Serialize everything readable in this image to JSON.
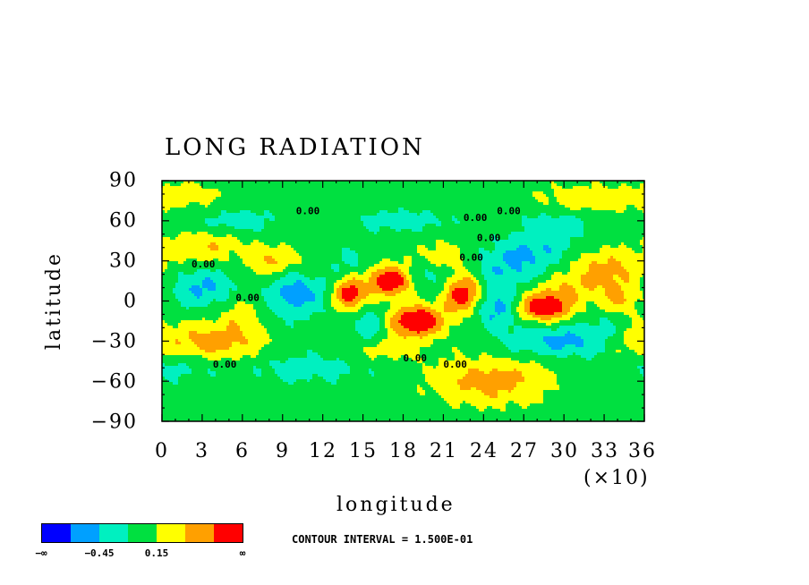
{
  "chart_data": {
    "type": "heatmap",
    "title": "LONG RADIATION",
    "xlabel": "longitude",
    "ylabel": "latitude",
    "x_multiplier": "(×10)",
    "xlim": [
      0,
      36
    ],
    "ylim": [
      -90,
      90
    ],
    "x_ticks": [
      "0",
      "3",
      "6",
      "9",
      "12",
      "15",
      "18",
      "21",
      "24",
      "27",
      "30",
      "33",
      "36"
    ],
    "y_ticks": [
      "90",
      "60",
      "30",
      "0",
      "−30",
      "−60",
      "−90"
    ],
    "contour_interval": "CONTOUR INTERVAL = 1.500E-01",
    "contour_labels": [
      "0.00",
      "0.00",
      "0.00",
      "0.00",
      "0.00",
      "0.00",
      "0.00",
      "0.00",
      "0.00",
      "0.00"
    ],
    "colorbar": {
      "colors": [
        "#0000ff",
        "#00a0ff",
        "#00f0c0",
        "#00e040",
        "#ffff00",
        "#ffa000",
        "#ff0000"
      ],
      "labels": [
        "−∞",
        "−0.45",
        "0.15",
        "∞"
      ]
    },
    "grid": false
  }
}
